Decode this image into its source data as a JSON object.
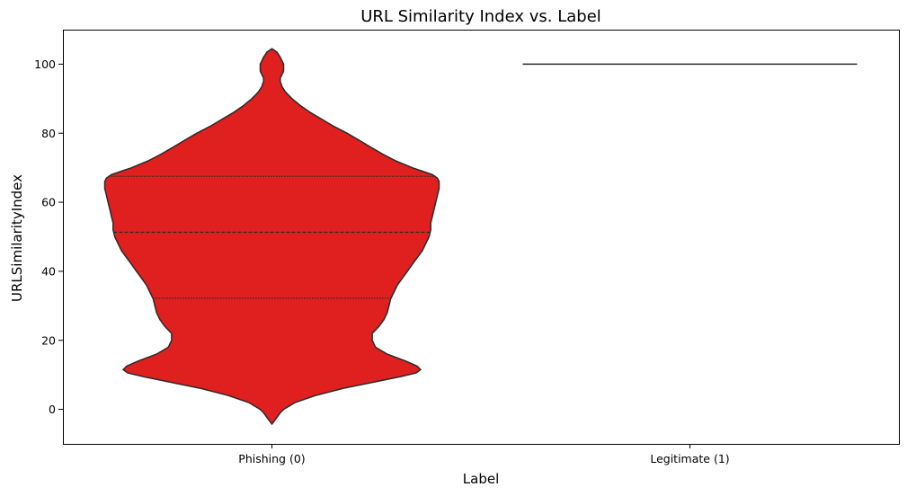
{
  "chart_data": {
    "type": "violin",
    "title": "URL Similarity Index vs. Label",
    "xlabel": "Label",
    "ylabel": "URLSimilarityIndex",
    "categories": [
      "Phishing (0)",
      "Legitimate (1)"
    ],
    "ylim": [
      -10,
      110
    ],
    "yticks": [
      0,
      20,
      40,
      60,
      80,
      100
    ],
    "grid": false,
    "legend": "none",
    "inner": "quartile",
    "series": [
      {
        "category": "Phishing (0)",
        "color": "#e01f1f",
        "edge_color": "#2b2b2b",
        "quartiles": [
          32.2,
          51.3,
          67.5
        ],
        "min": -4.3,
        "max": 104.5,
        "density": [
          [
            -4.3,
            0.0
          ],
          [
            -3,
            0.02
          ],
          [
            -1,
            0.05
          ],
          [
            0,
            0.07
          ],
          [
            2,
            0.14
          ],
          [
            4,
            0.26
          ],
          [
            6,
            0.42
          ],
          [
            8,
            0.62
          ],
          [
            9.5,
            0.77
          ],
          [
            10.5,
            0.86
          ],
          [
            11.5,
            0.89
          ],
          [
            12.5,
            0.87
          ],
          [
            14,
            0.8
          ],
          [
            16,
            0.69
          ],
          [
            18,
            0.62
          ],
          [
            20,
            0.6
          ],
          [
            22,
            0.6
          ],
          [
            24,
            0.64
          ],
          [
            26,
            0.67
          ],
          [
            28,
            0.69
          ],
          [
            30,
            0.7
          ],
          [
            32,
            0.71
          ],
          [
            34,
            0.73
          ],
          [
            36,
            0.75
          ],
          [
            38,
            0.78
          ],
          [
            40,
            0.81
          ],
          [
            42,
            0.84
          ],
          [
            44,
            0.87
          ],
          [
            46,
            0.9
          ],
          [
            48,
            0.92
          ],
          [
            50,
            0.94
          ],
          [
            52,
            0.95
          ],
          [
            54,
            0.95
          ],
          [
            56,
            0.96
          ],
          [
            58,
            0.97
          ],
          [
            60,
            0.98
          ],
          [
            62,
            0.99
          ],
          [
            64,
            1.0
          ],
          [
            66,
            1.0
          ],
          [
            67,
            0.99
          ],
          [
            68,
            0.96
          ],
          [
            69,
            0.9
          ],
          [
            70,
            0.84
          ],
          [
            72,
            0.74
          ],
          [
            74,
            0.66
          ],
          [
            76,
            0.59
          ],
          [
            78,
            0.52
          ],
          [
            80,
            0.45
          ],
          [
            82,
            0.37
          ],
          [
            84,
            0.3
          ],
          [
            86,
            0.23
          ],
          [
            88,
            0.17
          ],
          [
            90,
            0.12
          ],
          [
            92,
            0.08
          ],
          [
            93.5,
            0.06
          ],
          [
            95,
            0.05
          ],
          [
            96,
            0.05
          ],
          [
            97,
            0.06
          ],
          [
            98,
            0.07
          ],
          [
            100,
            0.07
          ],
          [
            102,
            0.05
          ],
          [
            103.5,
            0.03
          ],
          [
            104.5,
            0.0
          ]
        ]
      },
      {
        "category": "Legitimate (1)",
        "value": 100,
        "edge_color": "#2b2b2b"
      }
    ]
  }
}
